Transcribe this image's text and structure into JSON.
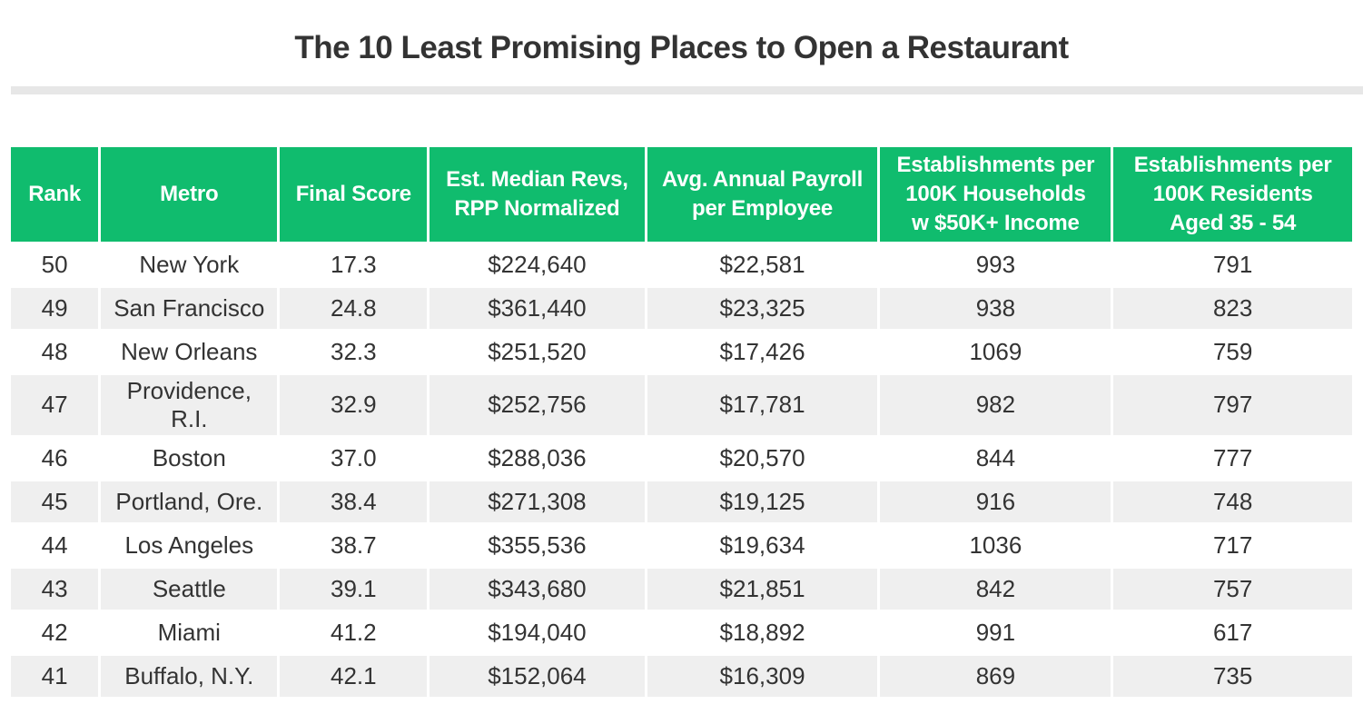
{
  "colors": {
    "accent_green": "#10bc6e",
    "row_alt": "#efefef",
    "divider": "#e7e7e7",
    "text_dark": "#333333",
    "header_text": "#ffffff",
    "page_bg": "#ffffff"
  },
  "chart_data": {
    "type": "table",
    "title": "The 10 Least Promising Places to Open a Restaurant",
    "columns": [
      "Rank",
      "Metro",
      "Final Score",
      "Est. Median Revs,\nRPP Normalized",
      "Avg. Annual Payroll\nper Employee",
      "Establishments per\n100K Households\nw $50K+ Income",
      "Establishments per\n100K Residents\nAged 35 - 54"
    ],
    "rows": [
      [
        "50",
        "New York",
        "17.3",
        "$224,640",
        "$22,581",
        "993",
        "791"
      ],
      [
        "49",
        "San Francisco",
        "24.8",
        "$361,440",
        "$23,325",
        "938",
        "823"
      ],
      [
        "48",
        "New Orleans",
        "32.3",
        "$251,520",
        "$17,426",
        "1069",
        "759"
      ],
      [
        "47",
        "Providence, R.I.",
        "32.9",
        "$252,756",
        "$17,781",
        "982",
        "797"
      ],
      [
        "46",
        "Boston",
        "37.0",
        "$288,036",
        "$20,570",
        "844",
        "777"
      ],
      [
        "45",
        "Portland, Ore.",
        "38.4",
        "$271,308",
        "$19,125",
        "916",
        "748"
      ],
      [
        "44",
        "Los Angeles",
        "38.7",
        "$355,536",
        "$19,634",
        "1036",
        "717"
      ],
      [
        "43",
        "Seattle",
        "39.1",
        "$343,680",
        "$21,851",
        "842",
        "757"
      ],
      [
        "42",
        "Miami",
        "41.2",
        "$194,040",
        "$18,892",
        "991",
        "617"
      ],
      [
        "41",
        "Buffalo, N.Y.",
        "42.1",
        "$152,064",
        "$16,309",
        "869",
        "735"
      ]
    ],
    "layout": {
      "header_bg": "#10bc6e",
      "alternating_rows": true,
      "grid": "3px white cell gaps, no borders"
    }
  }
}
